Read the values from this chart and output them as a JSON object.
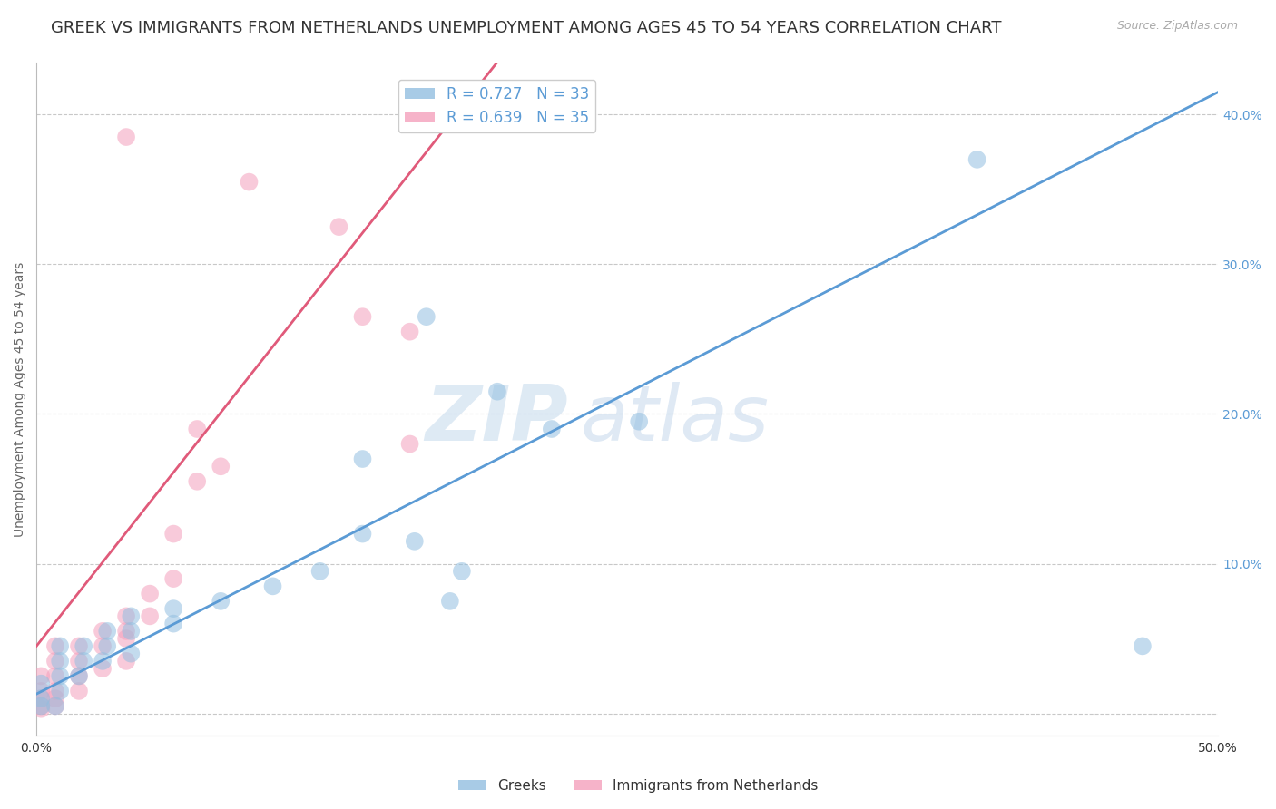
{
  "title": "GREEK VS IMMIGRANTS FROM NETHERLANDS UNEMPLOYMENT AMONG AGES 45 TO 54 YEARS CORRELATION CHART",
  "source_text": "Source: ZipAtlas.com",
  "ylabel": "Unemployment Among Ages 45 to 54 years",
  "xlim": [
    0.0,
    0.5
  ],
  "ylim": [
    -0.015,
    0.435
  ],
  "xticks": [
    0.0,
    0.05,
    0.1,
    0.15,
    0.2,
    0.25,
    0.3,
    0.35,
    0.4,
    0.45,
    0.5
  ],
  "yticks": [
    0.0,
    0.1,
    0.2,
    0.3,
    0.4
  ],
  "ytick_labels_right": [
    "",
    "10.0%",
    "20.0%",
    "30.0%",
    "40.0%"
  ],
  "grid_yticks": [
    0.0,
    0.1,
    0.2,
    0.3,
    0.4
  ],
  "xtick_labels": [
    "0.0%",
    "",
    "",
    "",
    "",
    "",
    "",
    "",
    "",
    "",
    "50.0%"
  ],
  "legend_entries": [
    {
      "label": "R = 0.727   N = 33",
      "color": "#a8c4e0"
    },
    {
      "label": "R = 0.639   N = 35",
      "color": "#f4b8c8"
    }
  ],
  "watermark_zip": "ZIP",
  "watermark_atlas": "atlas",
  "blue_scatter_x": [
    0.255,
    0.165,
    0.195,
    0.138,
    0.16,
    0.18,
    0.175,
    0.12,
    0.1,
    0.078,
    0.058,
    0.058,
    0.04,
    0.04,
    0.04,
    0.03,
    0.03,
    0.028,
    0.02,
    0.02,
    0.018,
    0.01,
    0.01,
    0.01,
    0.01,
    0.008,
    0.002,
    0.002,
    0.002,
    0.218,
    0.138,
    0.398,
    0.468
  ],
  "blue_scatter_y": [
    0.195,
    0.265,
    0.215,
    0.12,
    0.115,
    0.095,
    0.075,
    0.095,
    0.085,
    0.075,
    0.07,
    0.06,
    0.065,
    0.055,
    0.04,
    0.055,
    0.045,
    0.035,
    0.045,
    0.035,
    0.025,
    0.045,
    0.035,
    0.025,
    0.015,
    0.005,
    0.02,
    0.01,
    0.005,
    0.19,
    0.17,
    0.37,
    0.045
  ],
  "pink_scatter_x": [
    0.038,
    0.09,
    0.128,
    0.138,
    0.158,
    0.068,
    0.078,
    0.068,
    0.058,
    0.058,
    0.048,
    0.048,
    0.038,
    0.038,
    0.038,
    0.038,
    0.028,
    0.028,
    0.028,
    0.018,
    0.018,
    0.018,
    0.018,
    0.008,
    0.008,
    0.008,
    0.008,
    0.008,
    0.008,
    0.002,
    0.002,
    0.002,
    0.002,
    0.002,
    0.158
  ],
  "pink_scatter_y": [
    0.385,
    0.355,
    0.325,
    0.265,
    0.18,
    0.19,
    0.165,
    0.155,
    0.12,
    0.09,
    0.08,
    0.065,
    0.065,
    0.055,
    0.05,
    0.035,
    0.055,
    0.045,
    0.03,
    0.045,
    0.035,
    0.025,
    0.015,
    0.045,
    0.035,
    0.025,
    0.015,
    0.01,
    0.005,
    0.025,
    0.015,
    0.01,
    0.005,
    0.003,
    0.255
  ],
  "blue_line_x": [
    -0.01,
    0.5
  ],
  "blue_line_y": [
    0.005,
    0.415
  ],
  "pink_line_x": [
    -0.005,
    0.195
  ],
  "pink_line_y": [
    0.035,
    0.435
  ],
  "blue_color": "#92bfe0",
  "pink_color": "#f4a0bc",
  "blue_line_color": "#5b9bd5",
  "pink_line_color": "#e05a7a",
  "grid_color": "#c8c8c8",
  "background_color": "#ffffff",
  "title_fontsize": 13,
  "axis_label_fontsize": 10,
  "tick_fontsize": 10,
  "legend_fontsize": 12
}
